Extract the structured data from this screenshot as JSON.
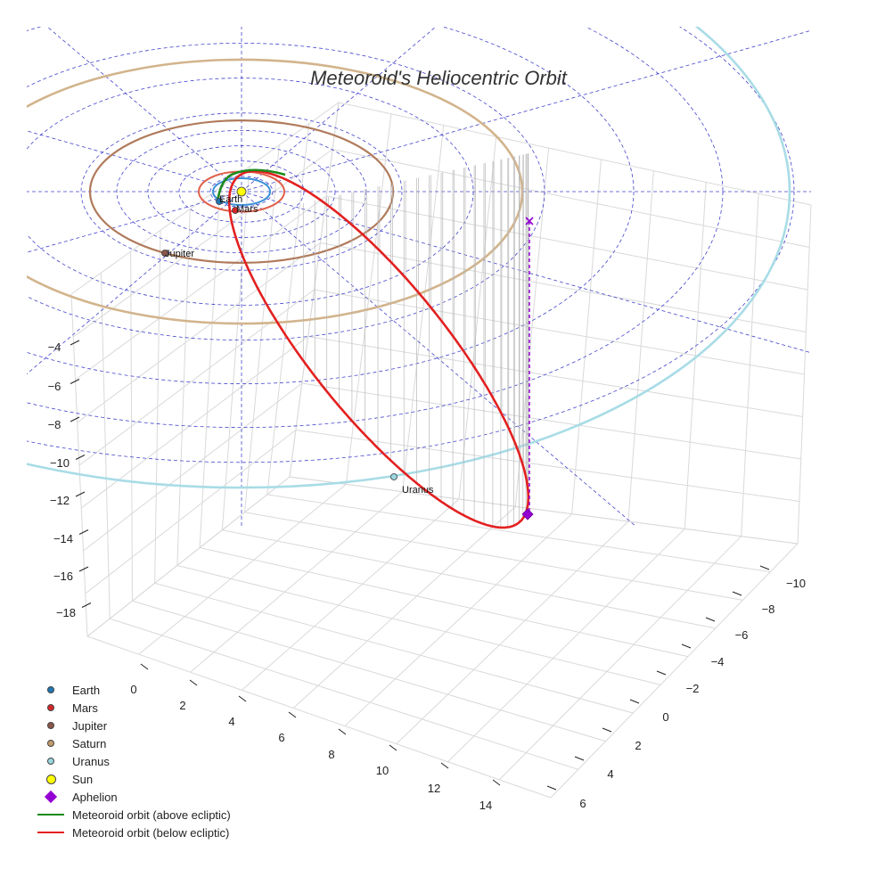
{
  "chart_data": {
    "type": "3d-line",
    "title": "Meteoroid's Heliocentric Orbit",
    "axes": {
      "x": {
        "ticks": [
          "0",
          "2",
          "4",
          "6",
          "8",
          "10",
          "12",
          "14"
        ]
      },
      "y": {
        "ticks": [
          "−10",
          "−8",
          "−6",
          "−4",
          "−2",
          "0",
          "2",
          "4",
          "6"
        ]
      },
      "z": {
        "ticks": [
          "−4",
          "−6",
          "−8",
          "−10",
          "−12",
          "−14",
          "−16",
          "−18"
        ]
      }
    },
    "grid": true,
    "legend_position": "bottom-left",
    "planets": [
      {
        "name": "Earth",
        "label": "Earth",
        "color": "#1f77b4"
      },
      {
        "name": "Mars",
        "label": "Mars",
        "color": "#d62728"
      },
      {
        "name": "Jupiter",
        "label": "Jupiter",
        "color": "#8c564b"
      },
      {
        "name": "Saturn",
        "label": "",
        "color": "#c49a6c"
      },
      {
        "name": "Uranus",
        "label": "Uranus",
        "color": "#9ad6e0"
      }
    ],
    "sun": {
      "name": "Sun",
      "color": "#ffff00"
    },
    "aphelion": {
      "name": "Aphelion",
      "color": "#9400d3"
    },
    "orbit_above": {
      "name": "Meteoroid orbit (above ecliptic)",
      "color": "#1a8a1a"
    },
    "orbit_below": {
      "name": "Meteoroid orbit (below ecliptic)",
      "color": "#e32020"
    }
  },
  "legend": [
    {
      "label": "Earth",
      "kind": "dot",
      "color": "#1f77b4"
    },
    {
      "label": "Mars",
      "kind": "dot",
      "color": "#d62728"
    },
    {
      "label": "Jupiter",
      "kind": "dot",
      "color": "#8c564b"
    },
    {
      "label": "Saturn",
      "kind": "dot",
      "color": "#c49a6c"
    },
    {
      "label": "Uranus",
      "kind": "dot",
      "color": "#9ad6e0"
    },
    {
      "label": "Sun",
      "kind": "bigdot",
      "color": "#ffff00"
    },
    {
      "label": "Aphelion",
      "kind": "diamond",
      "color": "#9400d3"
    },
    {
      "label": "Meteoroid orbit (above ecliptic)",
      "kind": "line",
      "color": "#1a8a1a"
    },
    {
      "label": "Meteoroid orbit (below ecliptic)",
      "kind": "line",
      "color": "#e32020"
    }
  ]
}
